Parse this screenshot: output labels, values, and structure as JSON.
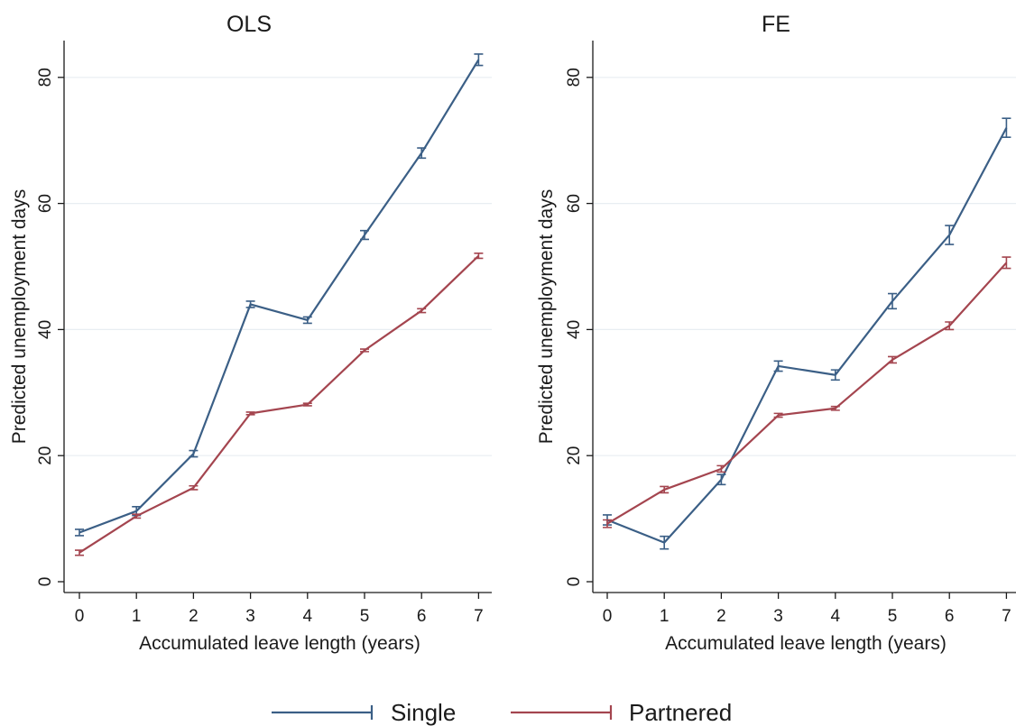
{
  "chart_data": [
    {
      "type": "line",
      "title": "OLS",
      "xlabel": "Accumulated leave length (years)",
      "ylabel": "Predicted unemployment days",
      "x": [
        0,
        1,
        2,
        3,
        4,
        5,
        6,
        7
      ],
      "xticks": [
        "0",
        "1",
        "2",
        "3",
        "4",
        "5",
        "6",
        "7"
      ],
      "yticks": [
        "0",
        "20",
        "40",
        "60",
        "80"
      ],
      "ylim": [
        0,
        85
      ],
      "grid": true,
      "series": [
        {
          "name": "Single",
          "color": "#3b5f86",
          "values": [
            7.8,
            11.2,
            20.3,
            44.0,
            41.5,
            55.0,
            68.0,
            82.8
          ],
          "ci_low": [
            7.3,
            10.5,
            19.8,
            43.5,
            41.0,
            54.3,
            67.2,
            81.9
          ],
          "ci_high": [
            8.3,
            11.9,
            20.8,
            44.5,
            42.0,
            55.7,
            68.8,
            83.7
          ]
        },
        {
          "name": "Partnered",
          "color": "#a4454f",
          "values": [
            4.6,
            10.4,
            14.9,
            26.7,
            28.1,
            36.7,
            43.0,
            51.7
          ],
          "ci_low": [
            4.2,
            10.1,
            14.6,
            26.5,
            27.9,
            36.5,
            42.7,
            51.3
          ],
          "ci_high": [
            5.0,
            10.7,
            15.2,
            26.9,
            28.3,
            36.9,
            43.3,
            52.1
          ]
        }
      ]
    },
    {
      "type": "line",
      "title": "FE",
      "xlabel": "Accumulated leave length (years)",
      "ylabel": "Predicted unemployment days",
      "x": [
        0,
        1,
        2,
        3,
        4,
        5,
        6,
        7
      ],
      "xticks": [
        "0",
        "1",
        "2",
        "3",
        "4",
        "5",
        "6",
        "7"
      ],
      "yticks": [
        "0",
        "20",
        "40",
        "60",
        "80"
      ],
      "ylim": [
        0,
        85
      ],
      "grid": true,
      "series": [
        {
          "name": "Single",
          "color": "#3b5f86",
          "values": [
            9.8,
            6.2,
            16.2,
            34.2,
            32.8,
            44.5,
            55.0,
            72.0
          ],
          "ci_low": [
            9.0,
            5.2,
            15.4,
            33.4,
            32.0,
            43.3,
            53.5,
            70.5
          ],
          "ci_high": [
            10.6,
            7.2,
            17.0,
            35.0,
            33.6,
            45.7,
            56.5,
            73.5
          ]
        },
        {
          "name": "Partnered",
          "color": "#a4454f",
          "values": [
            9.2,
            14.6,
            17.9,
            26.4,
            27.5,
            35.2,
            40.6,
            50.6
          ],
          "ci_low": [
            8.6,
            14.1,
            17.4,
            26.1,
            27.2,
            34.7,
            40.0,
            49.7
          ],
          "ci_high": [
            9.8,
            15.1,
            18.4,
            26.7,
            27.8,
            35.7,
            41.2,
            51.5
          ]
        }
      ]
    }
  ],
  "legend": {
    "position": "bottom",
    "items": [
      {
        "label": "Single",
        "color": "#3b5f86"
      },
      {
        "label": "Partnered",
        "color": "#a4454f"
      }
    ]
  }
}
